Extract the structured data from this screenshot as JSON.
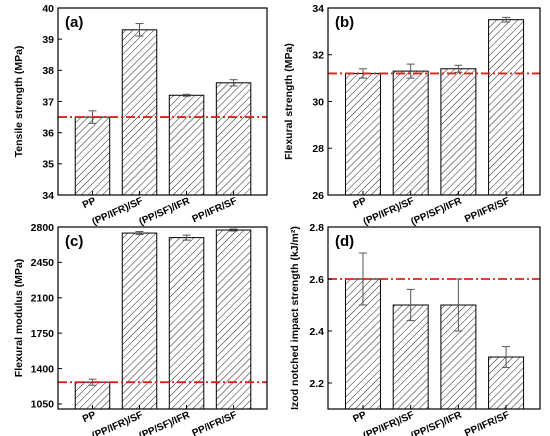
{
  "chart_data": [
    {
      "type": "bar",
      "panel_label": "(a)",
      "categories": [
        "PP",
        "(PP/IFR)/SF",
        "(PP/SF)/IFR",
        "PP/IFR/SF"
      ],
      "values": [
        36.5,
        39.3,
        37.2,
        37.6
      ],
      "errors": [
        0.2,
        0.2,
        0.03,
        0.1
      ],
      "ylabel": "Tensile strength (MPa)",
      "ylim": [
        34,
        40
      ],
      "yticks": [
        "34",
        "35",
        "36",
        "37",
        "38",
        "39",
        "40"
      ],
      "reference_line": 36.5,
      "reference_color": "#e0201b"
    },
    {
      "type": "bar",
      "panel_label": "(b)",
      "categories": [
        "PP",
        "(PP/IFR)/SF",
        "(PP/SF)/IFR",
        "PP/IFR/SF"
      ],
      "values": [
        31.2,
        31.3,
        31.4,
        33.5
      ],
      "errors": [
        0.2,
        0.3,
        0.15,
        0.1
      ],
      "ylabel": "Flexural strength (MPa)",
      "ylim": [
        26,
        34
      ],
      "yticks": [
        "26",
        "28",
        "30",
        "32",
        "34"
      ],
      "reference_line": 31.2,
      "reference_color": "#e0201b"
    },
    {
      "type": "bar",
      "panel_label": "(c)",
      "categories": [
        "PP",
        "(PP/IFR)/SF",
        "(PP/SF)/IFR",
        "PP/IFR/SF"
      ],
      "values": [
        1265,
        2740,
        2695,
        2770
      ],
      "errors": [
        30,
        15,
        25,
        10
      ],
      "ylabel": "Flexural modulus (MPa)",
      "ylim": [
        1000,
        2800
      ],
      "yticks": [
        "1050",
        "1400",
        "1750",
        "2100",
        "2450",
        "2800"
      ],
      "reference_line": 1265,
      "reference_color": "#e0201b"
    },
    {
      "type": "bar",
      "panel_label": "(d)",
      "categories": [
        "PP",
        "(PP/IFR)/SF",
        "(PP/SF)/IFR",
        "PP/IFR/SF"
      ],
      "values": [
        2.6,
        2.5,
        2.5,
        2.3
      ],
      "errors": [
        0.1,
        0.06,
        0.1,
        0.04
      ],
      "ylabel": "Izod notched impact strength (kJ/m²)",
      "ylim": [
        2.1,
        2.8
      ],
      "yticks": [
        "2.2",
        "2.4",
        "2.6",
        "2.8"
      ],
      "reference_line": 2.6,
      "reference_color": "#e0201b"
    }
  ]
}
